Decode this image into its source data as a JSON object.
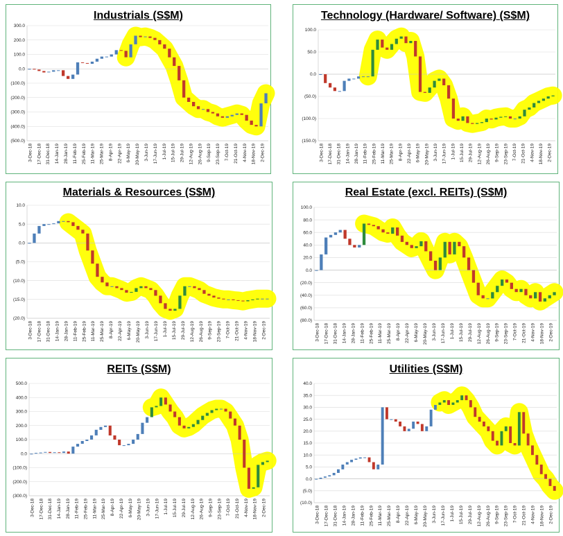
{
  "chart_data": [
    {
      "type": "waterfall",
      "title": "Industrials (S$M)",
      "ylim": [
        -500,
        300
      ],
      "y_ticks": [
        300,
        200,
        100,
        0,
        -100,
        -200,
        -300,
        -400,
        -500
      ],
      "y_tick_labels": [
        "300.0",
        "200.0",
        "100.0",
        "0.0",
        "(100.0)",
        "(200.0)",
        "(300.0)",
        "(400.0)",
        "(500.0)"
      ],
      "x_tick_labels": [
        "3-Dec-18",
        "17-Dec-18",
        "31-Dec-18",
        "14-Jan-19",
        "28-Jan-19",
        "11-Feb-19",
        "25-Feb-19",
        "11-Mar-19",
        "25-Mar-19",
        "8-Apr-19",
        "22-Apr-19",
        "6-May-19",
        "20-May-19",
        "3-Jun-19",
        "17-Jun-19",
        "1-Jul-19",
        "15-Jul-19",
        "29-Jul-19",
        "12-Aug-19",
        "26-Aug-19",
        "9-Sep-19",
        "23-Sep-19",
        "7-Oct-19",
        "21-Oct-19",
        "4-Nov-19",
        "18-Nov-19",
        "2-Dec-19"
      ],
      "values": [
        0,
        -5,
        -15,
        -25,
        -20,
        -10,
        -10,
        -50,
        -70,
        -40,
        45,
        40,
        35,
        50,
        70,
        85,
        85,
        100,
        130,
        125,
        80,
        170,
        230,
        220,
        225,
        215,
        200,
        170,
        140,
        80,
        20,
        -80,
        -200,
        -230,
        -260,
        -280,
        -280,
        -300,
        -310,
        -330,
        -340,
        -330,
        -320,
        -310,
        -320,
        -360,
        -390,
        -400,
        -240,
        -170
      ],
      "up_color": "#4e7fb8",
      "down_color": "#c0392b",
      "highlight_color": "#ffff00",
      "highlight_start": 20
    },
    {
      "type": "waterfall",
      "title": "Technology (Hardware/ Software) (S$M)",
      "ylim": [
        -150,
        100
      ],
      "y_ticks": [
        100,
        50,
        0,
        -50,
        -100,
        -150
      ],
      "y_tick_labels": [
        "100.0",
        "50.0",
        "0.0",
        "(50.0)",
        "(100.0)",
        "(150.0)"
      ],
      "x_tick_labels": [
        "3-Dec-18",
        "17-Dec-18",
        "31-Dec-18",
        "14-Jan-19",
        "28-Jan-19",
        "11-Feb-19",
        "25-Feb-19",
        "11-Mar-19",
        "25-Mar-19",
        "8-Apr-19",
        "22-Apr-19",
        "6-May-19",
        "20-May-19",
        "3-Jun-19",
        "17-Jun-19",
        "1-Jul-19",
        "15-Jul-19",
        "29-Jul-19",
        "12-Aug-19",
        "26-Aug-19",
        "9-Sep-19",
        "23-Sep-19",
        "7-Oct-19",
        "21-Oct-19",
        "4-Nov-19",
        "18-Nov-19",
        "2-Dec-19"
      ],
      "values": [
        0,
        -20,
        -30,
        -38,
        -38,
        -15,
        -10,
        -10,
        -5,
        -5,
        -5,
        55,
        78,
        60,
        55,
        68,
        80,
        85,
        70,
        75,
        40,
        -40,
        -42,
        -30,
        -15,
        -10,
        -25,
        -55,
        -100,
        -105,
        -95,
        -110,
        -112,
        -110,
        -108,
        -100,
        -102,
        -98,
        -96,
        -95,
        -100,
        -100,
        -95,
        -80,
        -75,
        -65,
        -60,
        -55,
        -50,
        -48
      ],
      "up_color": "#4e7fb8",
      "down_color": "#c0392b",
      "green_color": "#2e8b3c",
      "highlight_color": "#ffff00",
      "highlight_start": 10
    },
    {
      "type": "waterfall",
      "title": "Materials & Resources (S$M)",
      "ylim": [
        -20,
        10
      ],
      "y_ticks": [
        10,
        5,
        0,
        -5,
        -10,
        -15,
        -20
      ],
      "y_tick_labels": [
        "10.0",
        "5.0",
        "0.0",
        "(5.0)",
        "(10.0)",
        "(15.0)",
        "(20.0)"
      ],
      "x_tick_labels": [
        "3-Dec-18",
        "17-Dec-18",
        "31-Dec-18",
        "14-Jan-19",
        "28-Jan-19",
        "11-Feb-19",
        "25-Feb-19",
        "11-Mar-19",
        "25-Mar-19",
        "8-Apr-19",
        "22-Apr-19",
        "6-May-19",
        "20-May-19",
        "3-Jun-19",
        "17-Jun-19",
        "1-Jul-19",
        "15-Jul-19",
        "29-Jul-19",
        "12-Aug-19",
        "26-Aug-19",
        "9-Sep-19",
        "23-Sep-19",
        "7-Oct-19",
        "21-Oct-19",
        "4-Nov-19",
        "18-Nov-19",
        "2-Dec-19"
      ],
      "values": [
        0,
        2.5,
        4.5,
        5,
        5,
        5.2,
        5.8,
        5.8,
        5.5,
        4.5,
        3.5,
        2.5,
        -2,
        -5.5,
        -9,
        -10.5,
        -11.5,
        -11.5,
        -12,
        -12.5,
        -13.2,
        -13,
        -12,
        -11.5,
        -12,
        -12.5,
        -14,
        -16,
        -17.5,
        -18,
        -17.5,
        -14,
        -11.5,
        -11.5,
        -12,
        -12.5,
        -13.5,
        -14,
        -14.5,
        -14.8,
        -15,
        -15,
        -15.2,
        -15.3,
        -15.5,
        -15.2,
        -15,
        -14.8,
        -14.8,
        -14.8
      ],
      "up_color": "#4e7fb8",
      "down_color": "#c0392b",
      "green_color": "#2e8b3c",
      "highlight_color": "#ffff00",
      "highlight_start": 8
    },
    {
      "type": "waterfall",
      "title": "Real Estate (excl. REITs) (S$M)",
      "ylim": [
        -80,
        100
      ],
      "y_ticks": [
        100,
        80,
        60,
        40,
        20,
        0,
        -20,
        -40,
        -60,
        -80
      ],
      "y_tick_labels": [
        "100.0",
        "80.0",
        "60.0",
        "40.0",
        "20.0",
        "0.0",
        "(20.0)",
        "(40.0)",
        "(60.0)",
        "(80.0)"
      ],
      "x_tick_labels": [
        "3-Dec-18",
        "17-Dec-18",
        "31-Dec-18",
        "14-Jan-19",
        "28-Jan-19",
        "11-Feb-19",
        "25-Feb-19",
        "11-Mar-19",
        "25-Mar-19",
        "8-Apr-19",
        "22-Apr-19",
        "6-May-19",
        "20-May-19",
        "3-Jun-19",
        "17-Jun-19",
        "1-Jul-19",
        "15-Jul-19",
        "29-Jul-19",
        "12-Aug-19",
        "26-Aug-19",
        "9-Sep-19",
        "23-Sep-19",
        "7-Oct-19",
        "21-Oct-19",
        "4-Nov-19",
        "18-Nov-19",
        "2-Dec-19"
      ],
      "values": [
        0,
        25,
        52,
        56,
        60,
        64,
        50,
        40,
        36,
        40,
        74,
        72,
        70,
        65,
        60,
        58,
        68,
        55,
        45,
        40,
        35,
        38,
        46,
        30,
        15,
        0,
        20,
        45,
        25,
        45,
        38,
        20,
        0,
        -20,
        -40,
        -45,
        -45,
        -35,
        -25,
        -15,
        -20,
        -30,
        -35,
        -30,
        -40,
        -45,
        -35,
        -50,
        -45,
        -40,
        -35
      ],
      "up_color": "#4e7fb8",
      "down_color": "#c0392b",
      "green_color": "#2e8b3c",
      "highlight_color": "#ffff00",
      "highlight_start": 10
    },
    {
      "type": "waterfall",
      "title": "REITs (S$M)",
      "ylim": [
        -300,
        500
      ],
      "y_ticks": [
        500,
        400,
        300,
        200,
        100,
        0,
        -100,
        -200,
        -300
      ],
      "y_tick_labels": [
        "500.0",
        "400.0",
        "300.0",
        "200.0",
        "100.0",
        "0.0",
        "(100.0)",
        "(200.0)",
        "(300.0)"
      ],
      "x_tick_labels": [
        "3-Dec-18",
        "17-Dec-18",
        "31-Dec-18",
        "14-Jan-19",
        "28-Jan-19",
        "11-Feb-19",
        "25-Feb-19",
        "11-Mar-19",
        "25-Mar-19",
        "8-Apr-19",
        "22-Apr-19",
        "6-May-19",
        "20-May-19",
        "3-Jun-19",
        "17-Jun-19",
        "1-Jul-19",
        "15-Jul-19",
        "29-Jul-19",
        "12-Aug-19",
        "26-Aug-19",
        "9-Sep-19",
        "23-Sep-19",
        "7-Oct-19",
        "21-Oct-19",
        "4-Nov-19",
        "18-Nov-19",
        "2-Dec-19"
      ],
      "values": [
        0,
        5,
        8,
        12,
        5,
        10,
        5,
        15,
        0,
        50,
        70,
        90,
        100,
        130,
        170,
        190,
        200,
        130,
        100,
        60,
        60,
        70,
        100,
        140,
        220,
        260,
        330,
        340,
        400,
        350,
        300,
        260,
        200,
        180,
        190,
        210,
        240,
        270,
        290,
        310,
        320,
        320,
        300,
        250,
        200,
        100,
        -100,
        -250,
        -240,
        -80,
        -60,
        -50
      ],
      "up_color": "#4e7fb8",
      "down_color": "#c0392b",
      "green_color": "#2e8b3c",
      "highlight_color": "#ffff00",
      "highlight_start": 26
    },
    {
      "type": "waterfall",
      "title": "Utilities (S$M)",
      "ylim": [
        -10,
        40
      ],
      "y_ticks": [
        40,
        35,
        30,
        25,
        20,
        15,
        10,
        5,
        0,
        -5,
        -10
      ],
      "y_tick_labels": [
        "40.0",
        "35.0",
        "30.0",
        "25.0",
        "20.0",
        "15.0",
        "10.0",
        "5.0",
        "0.0",
        "(5.0)",
        "(10.0)"
      ],
      "x_tick_labels": [
        "3-Dec-18",
        "17-Dec-18",
        "31-Dec-18",
        "14-Jan-19",
        "28-Jan-19",
        "11-Feb-19",
        "25-Feb-19",
        "11-Mar-19",
        "25-Mar-19",
        "8-Apr-19",
        "22-Apr-19",
        "6-May-19",
        "20-May-19",
        "3-Jun-19",
        "17-Jun-19",
        "1-Jul-19",
        "15-Jul-19",
        "29-Jul-19",
        "12-Aug-19",
        "26-Aug-19",
        "9-Sep-19",
        "23-Sep-19",
        "7-Oct-19",
        "21-Oct-19",
        "4-Nov-19",
        "18-Nov-19",
        "2-Dec-19"
      ],
      "values": [
        0,
        0.5,
        1,
        1.5,
        2.5,
        4,
        6,
        7,
        8,
        8.5,
        9,
        9,
        7,
        4,
        6,
        30,
        25,
        25,
        24,
        22,
        20,
        21,
        24,
        23,
        20,
        22,
        29,
        31,
        32,
        33,
        31,
        32,
        33,
        35,
        33,
        30,
        26,
        24,
        22,
        20,
        16,
        14,
        20,
        22,
        15,
        14,
        28,
        19,
        14,
        10,
        6,
        2,
        0,
        -3,
        -5
      ],
      "up_color": "#4e7fb8",
      "down_color": "#c0392b",
      "green_color": "#2e8b3c",
      "highlight_color": "#ffff00",
      "highlight_start": 28
    }
  ]
}
